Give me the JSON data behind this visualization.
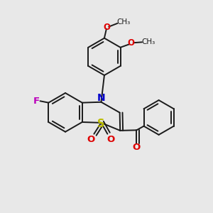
{
  "background_color": "#e8e8e8",
  "bond_color": "#1a1a1a",
  "N_color": "#0000cc",
  "O_color": "#dd0000",
  "S_color": "#bbbb00",
  "F_color": "#bb00bb",
  "lw": 1.4,
  "fs": 8.5,
  "xlim": [
    0,
    10
  ],
  "ylim": [
    0,
    10
  ]
}
